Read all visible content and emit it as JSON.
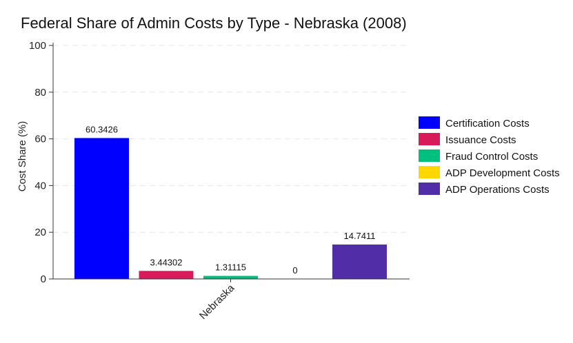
{
  "chart_data": {
    "type": "bar",
    "title": "Federal Share of Admin Costs by Type - Nebraska (2008)",
    "xlabel": "",
    "ylabel": "Cost Share (%)",
    "categories": [
      "Nebraska"
    ],
    "ylim": [
      0,
      100
    ],
    "yticks": [
      0,
      20,
      40,
      60,
      80,
      100
    ],
    "grid": true,
    "legend_position": "right",
    "series": [
      {
        "name": "Certification Costs",
        "values": [
          60.3426
        ],
        "label": "60.3426",
        "color": "#0000ff"
      },
      {
        "name": "Issuance Costs",
        "values": [
          3.44302
        ],
        "label": "3.44302",
        "color": "#d81b5a"
      },
      {
        "name": "Fraud Control Costs",
        "values": [
          1.31115
        ],
        "label": "1.31115",
        "color": "#00c07f"
      },
      {
        "name": "ADP Development Costs",
        "values": [
          0
        ],
        "label": "0",
        "color": "#ffd700"
      },
      {
        "name": "ADP Operations Costs",
        "values": [
          14.7411
        ],
        "label": "14.7411",
        "color": "#512da8"
      }
    ]
  }
}
